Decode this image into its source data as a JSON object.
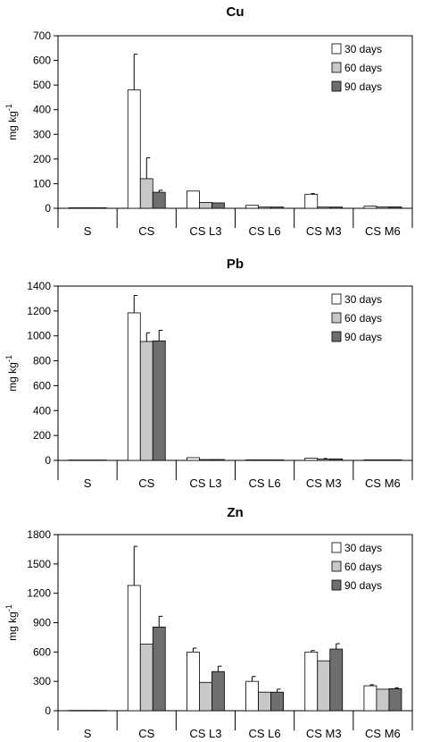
{
  "colors": {
    "s30": "#ffffff",
    "s60": "#c8c8c8",
    "s90": "#6e6e6e",
    "axis": "#000000"
  },
  "chart_data": [
    {
      "type": "bar",
      "title": "Cu",
      "ylabel": "mg kg",
      "ylabel_sup": "-1",
      "ylim": [
        0,
        700
      ],
      "yticks": [
        "0",
        "100",
        "200",
        "300",
        "400",
        "500",
        "600",
        "700"
      ],
      "categories": [
        "S",
        "CS",
        "CS L3",
        "CS L6",
        "CS M3",
        "CS M6"
      ],
      "legend_position": "top-right",
      "series": [
        {
          "name": "30 days",
          "values": [
            2,
            480,
            70,
            12,
            57,
            9
          ],
          "errors": [
            0,
            145,
            0,
            0,
            3,
            0
          ]
        },
        {
          "name": "60 days",
          "values": [
            2,
            120,
            24,
            5,
            5,
            6
          ],
          "errors": [
            0,
            85,
            0,
            0,
            0,
            0
          ]
        },
        {
          "name": "90 days",
          "values": [
            2,
            65,
            22,
            5,
            5,
            6
          ],
          "errors": [
            0,
            8,
            0,
            0,
            0,
            0
          ]
        }
      ]
    },
    {
      "type": "bar",
      "title": "Pb",
      "ylabel": "mg kg",
      "ylabel_sup": "-1",
      "ylim": [
        0,
        1400
      ],
      "yticks": [
        "0",
        "200",
        "400",
        "600",
        "800",
        "1000",
        "1200",
        "1400"
      ],
      "categories": [
        "S",
        "CS",
        "CS L3",
        "CS L6",
        "CS M3",
        "CS M6"
      ],
      "legend_position": "top-right",
      "series": [
        {
          "name": "30 days",
          "values": [
            3,
            1185,
            22,
            4,
            18,
            4
          ],
          "errors": [
            0,
            140,
            0,
            0,
            0,
            0
          ]
        },
        {
          "name": "60 days",
          "values": [
            3,
            955,
            7,
            4,
            10,
            4
          ],
          "errors": [
            0,
            70,
            0,
            0,
            5,
            0
          ]
        },
        {
          "name": "90 days",
          "values": [
            3,
            960,
            7,
            4,
            12,
            4
          ],
          "errors": [
            0,
            85,
            0,
            0,
            0,
            0
          ]
        }
      ]
    },
    {
      "type": "bar",
      "title": "Zn",
      "ylabel": "mg kg",
      "ylabel_sup": "-1",
      "ylim": [
        0,
        1800
      ],
      "yticks": [
        "0",
        "300",
        "600",
        "900",
        "1200",
        "1500",
        "1800"
      ],
      "categories": [
        "S",
        "CS",
        "CS L3",
        "CS L6",
        "CS M3",
        "CS M6"
      ],
      "legend_position": "top-right",
      "series": [
        {
          "name": "30 days",
          "values": [
            3,
            1280,
            600,
            300,
            600,
            255
          ],
          "errors": [
            0,
            400,
            40,
            50,
            15,
            10
          ]
        },
        {
          "name": "60 days",
          "values": [
            3,
            680,
            290,
            190,
            510,
            220
          ],
          "errors": [
            0,
            0,
            0,
            0,
            0,
            0
          ]
        },
        {
          "name": "90 days",
          "values": [
            3,
            855,
            400,
            190,
            630,
            225
          ],
          "errors": [
            0,
            110,
            55,
            30,
            55,
            10
          ]
        }
      ]
    }
  ]
}
